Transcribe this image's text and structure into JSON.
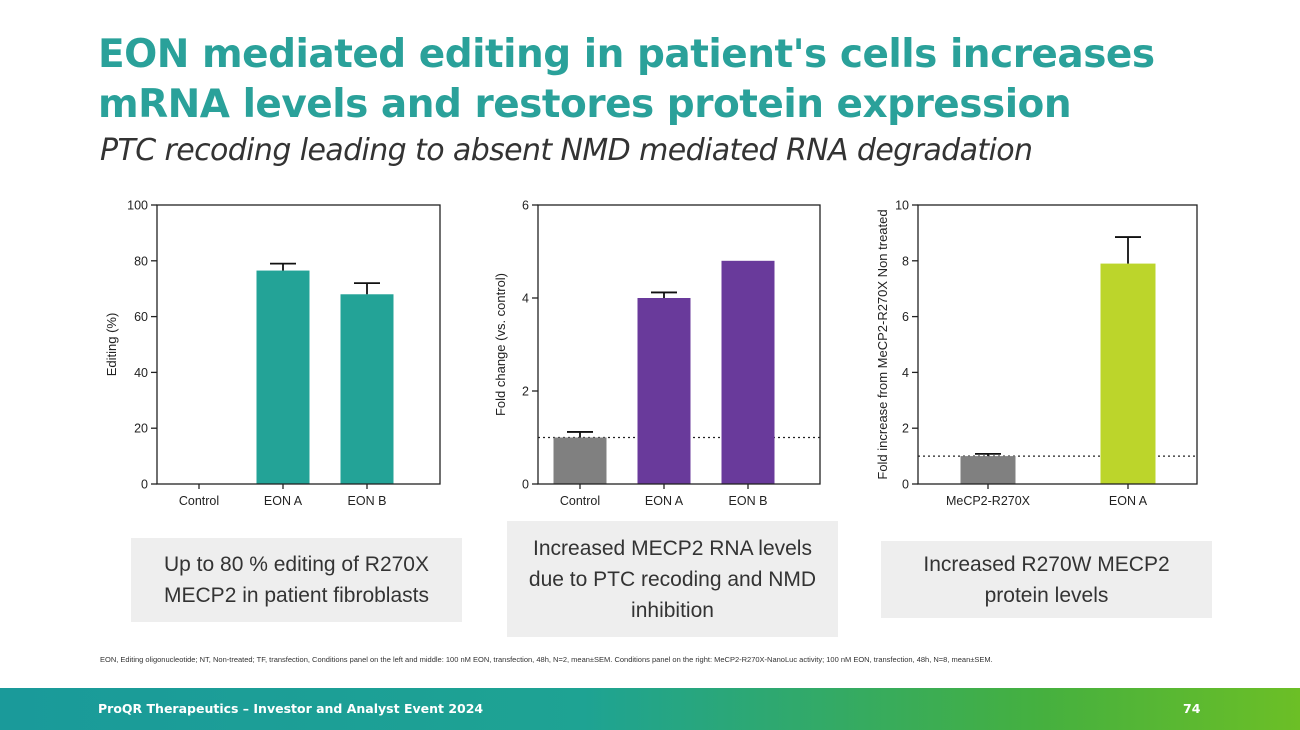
{
  "slide": {
    "title": "EON mediated editing in patient's cells increases mRNA levels and restores protein expression",
    "subtitle": "PTC recoding leading to absent NMD mediated RNA degradation",
    "callouts": [
      "Up to 80 % editing of R270X MECP2 in patient fibroblasts",
      "Increased MECP2 RNA levels due to PTC recoding and NMD inhibition",
      "Increased R270W MECP2 protein levels"
    ],
    "footnote": "EON, Editing oligonucleotide; NT, Non-treated; TF, transfection, Conditions panel on the left and middle: 100 nM EON, transfection, 48h, N=2, mean±SEM. Conditions panel on the right: MeCP2-R270X-NanoLuc activity; 100 nM EON, transfection, 48h, N=8, mean±SEM.",
    "footer": {
      "text": "ProQR Therapeutics – Investor and Analyst Event 2024",
      "page": "74"
    }
  },
  "chart_data": [
    {
      "type": "bar",
      "title": "",
      "xlabel": "",
      "ylabel": "Editing (%)",
      "ylim": [
        0,
        100
      ],
      "yticks": [
        0,
        20,
        40,
        60,
        80,
        100
      ],
      "categories": [
        "Control",
        "EON A",
        "EON B"
      ],
      "values": [
        0,
        76.5,
        68
      ],
      "errors": [
        0,
        2.5,
        4
      ],
      "colors": [
        "#808080",
        "#23a397",
        "#23a397"
      ],
      "reference_line": null
    },
    {
      "type": "bar",
      "title": "",
      "xlabel": "",
      "ylabel": "Fold change (vs. control)",
      "ylim": [
        0,
        6
      ],
      "yticks": [
        0,
        2,
        4,
        6
      ],
      "categories": [
        "Control",
        "EON A",
        "EON B"
      ],
      "values": [
        1,
        4,
        4.8
      ],
      "errors": [
        0.12,
        0.12,
        0
      ],
      "colors": [
        "#808080",
        "#693a9b",
        "#693a9b"
      ],
      "reference_line": 1
    },
    {
      "type": "bar",
      "title": "",
      "xlabel": "",
      "ylabel": "Fold increase from MeCP2-R270X Non treated",
      "ylim": [
        0,
        10
      ],
      "yticks": [
        0,
        2,
        4,
        6,
        8,
        10
      ],
      "categories": [
        "MeCP2-R270X",
        "EON A"
      ],
      "values": [
        1,
        7.9
      ],
      "errors": [
        0.08,
        0.95
      ],
      "colors": [
        "#808080",
        "#bcd52b"
      ],
      "reference_line": 1
    }
  ]
}
